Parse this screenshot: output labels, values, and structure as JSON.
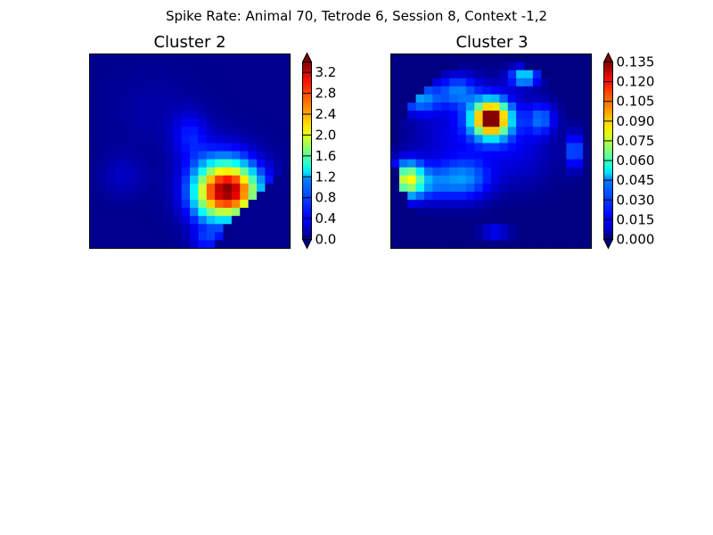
{
  "figure": {
    "title": "Spike Rate: Animal 70, Tetrode 6, Session 8, Context -1,2"
  },
  "chart_data": [
    {
      "type": "heatmap",
      "title": "Cluster 2",
      "colormap": "jet",
      "grid": false,
      "axes_ticks_visible": false,
      "colorbar": {
        "range": [
          0.0,
          3.4
        ],
        "ticks": [
          "0.0",
          "0.4",
          "0.8",
          "1.2",
          "1.6",
          "2.0",
          "2.4",
          "2.8",
          "3.2"
        ],
        "tick_values": [
          0.0,
          0.4,
          0.8,
          1.2,
          1.6,
          2.0,
          2.4,
          2.8,
          3.2
        ],
        "extend": "both"
      },
      "grid_size": [
        24,
        24
      ],
      "background_value": 0.06,
      "blobs": [
        {
          "cx": 16.5,
          "cy": 16.5,
          "sx": 2.4,
          "sy": 2.3,
          "amp": 3.3
        },
        {
          "cx": 15.0,
          "cy": 15.5,
          "sx": 2.8,
          "sy": 3.0,
          "amp": 1.2
        },
        {
          "cx": 13.5,
          "cy": 17.5,
          "sx": 1.6,
          "sy": 2.5,
          "amp": 0.7
        },
        {
          "cx": 11.5,
          "cy": 9.5,
          "sx": 1.5,
          "sy": 2.0,
          "amp": 0.55
        },
        {
          "cx": 3.5,
          "cy": 14.5,
          "sx": 1.8,
          "sy": 1.8,
          "amp": 0.25
        },
        {
          "cx": 7.0,
          "cy": 6.5,
          "sx": 3.5,
          "sy": 3.0,
          "amp": 0.12
        },
        {
          "cx": 13.5,
          "cy": 22.5,
          "sx": 1.2,
          "sy": 0.8,
          "amp": 0.6
        }
      ],
      "cutoff_below_diagonal": true,
      "max_value": 3.35
    },
    {
      "type": "heatmap",
      "title": "Cluster 3",
      "colormap": "jet",
      "grid": false,
      "axes_ticks_visible": false,
      "colorbar": {
        "range": [
          0.0,
          0.135
        ],
        "ticks": [
          "0.000",
          "0.015",
          "0.030",
          "0.045",
          "0.060",
          "0.075",
          "0.090",
          "0.105",
          "0.120",
          "0.135"
        ],
        "tick_values": [
          0.0,
          0.015,
          0.03,
          0.045,
          0.06,
          0.075,
          0.09,
          0.105,
          0.12,
          0.135
        ],
        "extend": "both"
      },
      "grid_size": [
        24,
        24
      ],
      "background_value": 0.0,
      "blobs": [
        {
          "cx": 11.5,
          "cy": 7.5,
          "sx": 1.4,
          "sy": 1.4,
          "amp": 0.128
        },
        {
          "cx": 11.5,
          "cy": 7.5,
          "sx": 2.5,
          "sy": 2.5,
          "amp": 0.035
        },
        {
          "cx": 1.5,
          "cy": 15.0,
          "sx": 1.3,
          "sy": 1.5,
          "amp": 0.08
        },
        {
          "cx": 4.0,
          "cy": 15.5,
          "sx": 2.2,
          "sy": 1.6,
          "amp": 0.028
        },
        {
          "cx": 8.5,
          "cy": 15.0,
          "sx": 2.2,
          "sy": 1.8,
          "amp": 0.035
        },
        {
          "cx": 3.0,
          "cy": 5.0,
          "sx": 1.8,
          "sy": 1.3,
          "amp": 0.04
        },
        {
          "cx": 7.5,
          "cy": 4.0,
          "sx": 1.6,
          "sy": 1.4,
          "amp": 0.032
        },
        {
          "cx": 15.5,
          "cy": 2.3,
          "sx": 1.2,
          "sy": 0.8,
          "amp": 0.055
        },
        {
          "cx": 17.5,
          "cy": 7.5,
          "sx": 1.2,
          "sy": 1.4,
          "amp": 0.032
        },
        {
          "cx": 21.5,
          "cy": 11.5,
          "sx": 0.6,
          "sy": 1.5,
          "amp": 0.04
        },
        {
          "cx": 12.0,
          "cy": 21.5,
          "sx": 1.2,
          "sy": 0.6,
          "amp": 0.022
        },
        {
          "cx": 6.0,
          "cy": 10.0,
          "sx": 3.0,
          "sy": 3.0,
          "amp": 0.012
        },
        {
          "cx": 15.0,
          "cy": 12.0,
          "sx": 3.0,
          "sy": 3.0,
          "amp": 0.012
        }
      ],
      "circular_mask": {
        "cx": 11.5,
        "cy": 12.0,
        "r": 11.6
      },
      "max_value": 0.135
    }
  ]
}
